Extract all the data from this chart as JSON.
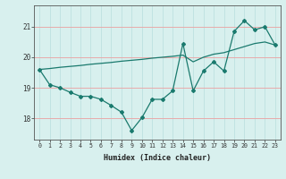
{
  "xlabel": "Humidex (Indice chaleur)",
  "background_color": "#d8f0ee",
  "line_color": "#1a7a6e",
  "grid_color_pink": "#e8aaaa",
  "grid_color_teal": "#b8dedd",
  "x_values": [
    0,
    1,
    2,
    3,
    4,
    5,
    6,
    7,
    8,
    9,
    10,
    11,
    12,
    13,
    14,
    15,
    16,
    17,
    18,
    19,
    20,
    21,
    22,
    23
  ],
  "y_zigzag": [
    19.6,
    19.1,
    19.0,
    18.85,
    18.72,
    18.72,
    18.62,
    18.42,
    18.2,
    17.6,
    18.02,
    18.62,
    18.62,
    18.9,
    20.45,
    18.9,
    19.55,
    19.85,
    19.55,
    20.85,
    21.2,
    20.9,
    21.0,
    20.4
  ],
  "y_trend": [
    19.6,
    19.63,
    19.67,
    19.7,
    19.73,
    19.77,
    19.8,
    19.83,
    19.87,
    19.9,
    19.93,
    19.97,
    20.0,
    20.03,
    20.07,
    19.85,
    20.0,
    20.1,
    20.15,
    20.25,
    20.35,
    20.45,
    20.5,
    20.4
  ],
  "ylim": [
    17.3,
    21.7
  ],
  "xlim": [
    -0.5,
    23.5
  ],
  "yticks": [
    18,
    19,
    20,
    21
  ],
  "xticks": [
    0,
    1,
    2,
    3,
    4,
    5,
    6,
    7,
    8,
    9,
    10,
    11,
    12,
    13,
    14,
    15,
    16,
    17,
    18,
    19,
    20,
    21,
    22,
    23
  ]
}
